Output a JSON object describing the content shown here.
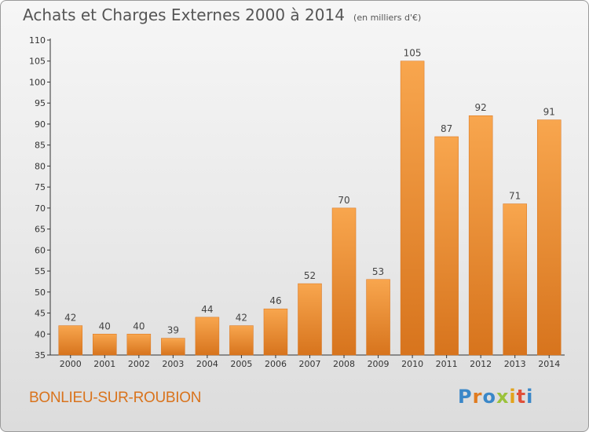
{
  "chart_data": {
    "type": "bar",
    "title": "Achats et Charges Externes 2000 à 2014",
    "subtitle": "(en milliers d'€)",
    "categories": [
      "2000",
      "2001",
      "2002",
      "2003",
      "2004",
      "2005",
      "2006",
      "2007",
      "2008",
      "2009",
      "2010",
      "2011",
      "2012",
      "2013",
      "2014"
    ],
    "values": [
      42,
      40,
      40,
      39,
      44,
      42,
      46,
      52,
      70,
      53,
      105,
      87,
      92,
      71,
      91
    ],
    "ylim": [
      35,
      110
    ],
    "yticks": [
      35,
      40,
      45,
      50,
      55,
      60,
      65,
      70,
      75,
      80,
      85,
      90,
      95,
      100,
      105,
      110
    ],
    "xlabel": "",
    "ylabel": "",
    "grid": false,
    "bar_color": "#f0922e",
    "data_labels": true
  },
  "footer": {
    "commune": "BONLIEU-SUR-ROUBION",
    "brand": [
      "P",
      "r",
      "o",
      "x",
      "i",
      "t",
      "i"
    ],
    "brand_colors": [
      "#3a87c8",
      "#e07b20",
      "#3a87c8",
      "#9bc23b",
      "#e2a31b",
      "#e0503a",
      "#3a87c8"
    ]
  },
  "colors": {
    "axis": "#333333",
    "value_label": "#444444",
    "commune": "#d9731c"
  }
}
